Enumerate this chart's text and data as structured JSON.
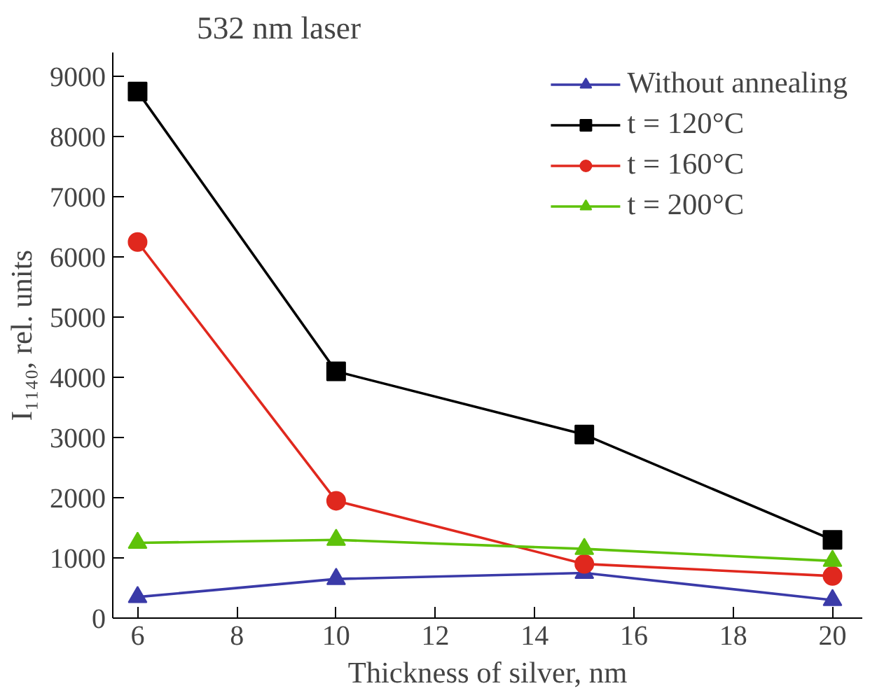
{
  "chart_data": {
    "type": "line",
    "title": "532 nm laser",
    "xlabel": "Thickness of silver, nm",
    "ylabel": "I₁₁₄₀, rel. units",
    "x": [
      6,
      10,
      15,
      20
    ],
    "xlim": [
      5.5,
      20.6
    ],
    "xticks": [
      6,
      8,
      10,
      12,
      14,
      16,
      18,
      20
    ],
    "ylim": [
      0,
      9400
    ],
    "yticks": [
      0,
      1000,
      2000,
      3000,
      4000,
      5000,
      6000,
      7000,
      8000,
      9000
    ],
    "grid": false,
    "legend": "top right",
    "line_style": "solid",
    "series": [
      {
        "name": "Without annealing",
        "color": "#3a3aa8",
        "marker": "triangle",
        "values": [
          350,
          650,
          750,
          300
        ]
      },
      {
        "name": "t = 120°C",
        "color": "#000000",
        "marker": "square",
        "values": [
          8750,
          4100,
          3050,
          1300
        ]
      },
      {
        "name": "t = 160°C",
        "color": "#e0281e",
        "marker": "circle",
        "values": [
          6250,
          1950,
          900,
          700
        ]
      },
      {
        "name": "t = 200°C",
        "color": "#5ec20a",
        "marker": "triangle",
        "values": [
          1250,
          1300,
          1150,
          950
        ]
      }
    ]
  }
}
